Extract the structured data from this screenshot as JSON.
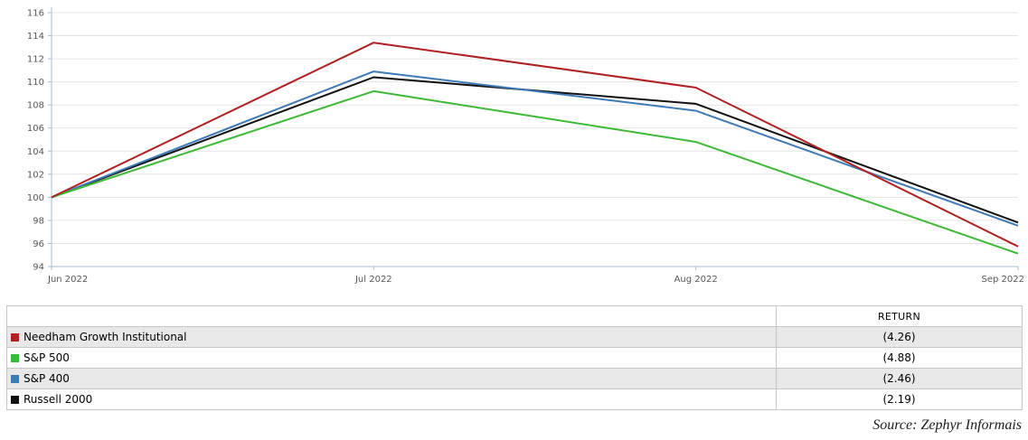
{
  "chart_data": {
    "type": "line",
    "title": "",
    "xlabel": "",
    "ylabel": "",
    "categories": [
      "Jun 2022",
      "Jul 2022",
      "Aug 2022",
      "Sep 2022"
    ],
    "series": [
      {
        "name": "Needham Growth Institutional",
        "color": "#b02121",
        "values": [
          100,
          113.4,
          109.5,
          95.74
        ]
      },
      {
        "name": "S&P 500",
        "color": "#3eb936",
        "values": [
          100,
          109.2,
          104.8,
          95.12
        ]
      },
      {
        "name": "S&P 400",
        "color": "#3d7ab8",
        "values": [
          100,
          110.9,
          107.5,
          97.54
        ]
      },
      {
        "name": "Russell 2000",
        "color": "#111111",
        "values": [
          100,
          110.4,
          108.1,
          97.81
        ]
      }
    ],
    "ylim": [
      94,
      116
    ],
    "ytick_step": 2,
    "grid": true,
    "grid_color": "#e4e4e4",
    "axis_color": "#a9bdd1",
    "tick_color": "#555555",
    "legend_position": "table-below-chart"
  },
  "table": {
    "return_header": "RETURN",
    "alt_row_color": "#e8e8e8",
    "rows": [
      {
        "label": "Needham Growth Institutional",
        "return": "(4.26)",
        "color": "#b02121"
      },
      {
        "label": "S&P 500",
        "return": "(4.88)",
        "color": "#3eb936"
      },
      {
        "label": "S&P 400",
        "return": "(2.46)",
        "color": "#3d7ab8"
      },
      {
        "label": "Russell 2000",
        "return": "(2.19)",
        "color": "#111111"
      }
    ]
  },
  "source_note": "Source: Zephyr Informais"
}
